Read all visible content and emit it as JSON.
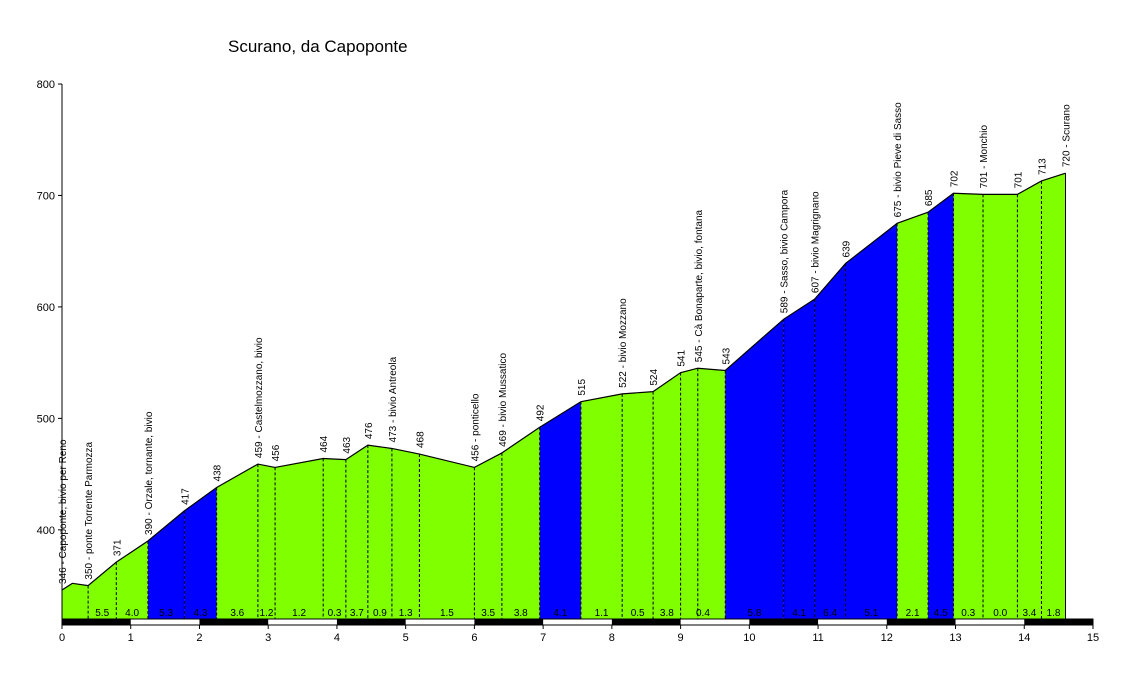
{
  "chart_data": {
    "type": "area",
    "title": "Scurano, da Capoponte",
    "xlabel": "",
    "ylabel": "",
    "xlim": [
      0,
      15
    ],
    "ylim": [
      320,
      800
    ],
    "x_ticks": [
      "0",
      "1",
      "2",
      "3",
      "4",
      "5",
      "6",
      "7",
      "8",
      "9",
      "10",
      "11",
      "12",
      "13",
      "14",
      "15"
    ],
    "y_ticks": [
      "400",
      "500",
      "600",
      "700",
      "800"
    ],
    "grid": false,
    "legend": "none",
    "colors": {
      "moderate": "#80ff00",
      "steep": "#0000ff",
      "line": "#000000"
    },
    "profile": [
      {
        "x": 0.0,
        "y": 346
      },
      {
        "x": 0.15,
        "y": 352
      },
      {
        "x": 0.38,
        "y": 350
      },
      {
        "x": 0.79,
        "y": 371
      },
      {
        "x": 1.25,
        "y": 390
      },
      {
        "x": 1.78,
        "y": 417
      },
      {
        "x": 2.25,
        "y": 438
      },
      {
        "x": 2.85,
        "y": 459
      },
      {
        "x": 3.1,
        "y": 456
      },
      {
        "x": 3.8,
        "y": 464
      },
      {
        "x": 4.13,
        "y": 463
      },
      {
        "x": 4.45,
        "y": 476
      },
      {
        "x": 4.8,
        "y": 473
      },
      {
        "x": 5.2,
        "y": 468
      },
      {
        "x": 6.0,
        "y": 456
      },
      {
        "x": 6.4,
        "y": 469
      },
      {
        "x": 6.95,
        "y": 492
      },
      {
        "x": 7.55,
        "y": 515
      },
      {
        "x": 8.15,
        "y": 522
      },
      {
        "x": 8.6,
        "y": 524
      },
      {
        "x": 9.0,
        "y": 541
      },
      {
        "x": 9.25,
        "y": 545
      },
      {
        "x": 9.65,
        "y": 543
      },
      {
        "x": 10.5,
        "y": 589
      },
      {
        "x": 10.95,
        "y": 607
      },
      {
        "x": 11.4,
        "y": 639
      },
      {
        "x": 12.15,
        "y": 675
      },
      {
        "x": 12.6,
        "y": 685
      },
      {
        "x": 12.97,
        "y": 702
      },
      {
        "x": 13.4,
        "y": 701
      },
      {
        "x": 13.9,
        "y": 701
      },
      {
        "x": 14.25,
        "y": 713
      },
      {
        "x": 14.6,
        "y": 720
      }
    ],
    "segments": [
      {
        "x0": 0.0,
        "x1": 0.38,
        "grade": "",
        "steep": false
      },
      {
        "x0": 0.38,
        "x1": 0.79,
        "grade": "5.5",
        "steep": false
      },
      {
        "x0": 0.79,
        "x1": 1.25,
        "grade": "4.0",
        "steep": false
      },
      {
        "x0": 1.25,
        "x1": 1.78,
        "grade": "5.3",
        "steep": true
      },
      {
        "x0": 1.78,
        "x1": 2.25,
        "grade": "4.3",
        "steep": true
      },
      {
        "x0": 2.25,
        "x1": 2.85,
        "grade": "3.6",
        "steep": false
      },
      {
        "x0": 2.85,
        "x1": 3.1,
        "grade": "1.2",
        "steep": false
      },
      {
        "x0": 3.1,
        "x1": 3.8,
        "grade": "1.2",
        "steep": false
      },
      {
        "x0": 3.8,
        "x1": 4.13,
        "grade": "0.3",
        "steep": false
      },
      {
        "x0": 4.13,
        "x1": 4.45,
        "grade": "3.7",
        "steep": false
      },
      {
        "x0": 4.45,
        "x1": 4.8,
        "grade": "0.9",
        "steep": false
      },
      {
        "x0": 4.8,
        "x1": 5.2,
        "grade": "1.3",
        "steep": false
      },
      {
        "x0": 5.2,
        "x1": 6.0,
        "grade": "1.5",
        "steep": false
      },
      {
        "x0": 6.0,
        "x1": 6.4,
        "grade": "3.5",
        "steep": false
      },
      {
        "x0": 6.4,
        "x1": 6.95,
        "grade": "3.8",
        "steep": false
      },
      {
        "x0": 6.95,
        "x1": 7.55,
        "grade": "4.1",
        "steep": true
      },
      {
        "x0": 7.55,
        "x1": 8.15,
        "grade": "1.1",
        "steep": false
      },
      {
        "x0": 8.15,
        "x1": 8.6,
        "grade": "0.5",
        "steep": false
      },
      {
        "x0": 8.6,
        "x1": 9.0,
        "grade": "3.8",
        "steep": false
      },
      {
        "x0": 9.0,
        "x1": 9.65,
        "grade": "0.4",
        "steep": false
      },
      {
        "x0": 9.65,
        "x1": 10.5,
        "grade": "5.8",
        "steep": true
      },
      {
        "x0": 10.5,
        "x1": 10.95,
        "grade": "4.1",
        "steep": true
      },
      {
        "x0": 10.95,
        "x1": 11.4,
        "grade": "6.4",
        "steep": true
      },
      {
        "x0": 11.4,
        "x1": 12.15,
        "grade": "5.1",
        "steep": true
      },
      {
        "x0": 12.15,
        "x1": 12.6,
        "grade": "2.1",
        "steep": false
      },
      {
        "x0": 12.6,
        "x1": 12.97,
        "grade": "4.5",
        "steep": true
      },
      {
        "x0": 12.97,
        "x1": 13.4,
        "grade": "0.3",
        "steep": false
      },
      {
        "x0": 13.4,
        "x1": 13.9,
        "grade": "0.0",
        "steep": false
      },
      {
        "x0": 13.9,
        "x1": 14.25,
        "grade": "3.4",
        "steep": false
      },
      {
        "x0": 14.25,
        "x1": 14.6,
        "grade": "1.8",
        "steep": false
      }
    ],
    "annotations": [
      {
        "x": 0.0,
        "y": 346,
        "text": "346 - Capoponte, bivio per Reno"
      },
      {
        "x": 0.38,
        "y": 350,
        "text": "350 - ponte Torrente Parmozza"
      },
      {
        "x": 0.79,
        "y": 371,
        "text": "371"
      },
      {
        "x": 1.25,
        "y": 390,
        "text": "390 - Orzale, tornante, bivio"
      },
      {
        "x": 1.78,
        "y": 417,
        "text": "417"
      },
      {
        "x": 2.25,
        "y": 438,
        "text": "438"
      },
      {
        "x": 2.85,
        "y": 459,
        "text": "459 - Castelmozzano, bivio"
      },
      {
        "x": 3.1,
        "y": 456,
        "text": "456"
      },
      {
        "x": 3.8,
        "y": 464,
        "text": "464"
      },
      {
        "x": 4.13,
        "y": 463,
        "text": "463"
      },
      {
        "x": 4.45,
        "y": 476,
        "text": "476"
      },
      {
        "x": 4.8,
        "y": 473,
        "text": "473 - bivio Antreola"
      },
      {
        "x": 5.2,
        "y": 468,
        "text": "468"
      },
      {
        "x": 6.0,
        "y": 456,
        "text": "456 - ponticello"
      },
      {
        "x": 6.4,
        "y": 469,
        "text": "469 - bivio Mussatico"
      },
      {
        "x": 6.95,
        "y": 492,
        "text": "492"
      },
      {
        "x": 7.55,
        "y": 515,
        "text": "515"
      },
      {
        "x": 8.15,
        "y": 522,
        "text": "522 - bivio Mozzano"
      },
      {
        "x": 8.6,
        "y": 524,
        "text": "524"
      },
      {
        "x": 9.0,
        "y": 541,
        "text": "541"
      },
      {
        "x": 9.25,
        "y": 545,
        "text": "545 - Cà Bonaparte, bivio, fontana"
      },
      {
        "x": 9.65,
        "y": 543,
        "text": "543"
      },
      {
        "x": 10.5,
        "y": 589,
        "text": "589 - Sasso, bivio Campora"
      },
      {
        "x": 10.95,
        "y": 607,
        "text": "607 - bivio Magrignano"
      },
      {
        "x": 11.4,
        "y": 639,
        "text": "639"
      },
      {
        "x": 12.15,
        "y": 675,
        "text": "675 - bivio Pieve di Sasso"
      },
      {
        "x": 12.6,
        "y": 685,
        "text": "685"
      },
      {
        "x": 12.97,
        "y": 702,
        "text": "702"
      },
      {
        "x": 13.4,
        "y": 701,
        "text": "701 - Monchio"
      },
      {
        "x": 13.9,
        "y": 701,
        "text": "701"
      },
      {
        "x": 14.25,
        "y": 713,
        "text": "713"
      },
      {
        "x": 14.6,
        "y": 720,
        "text": "720 - Scurano"
      }
    ]
  }
}
